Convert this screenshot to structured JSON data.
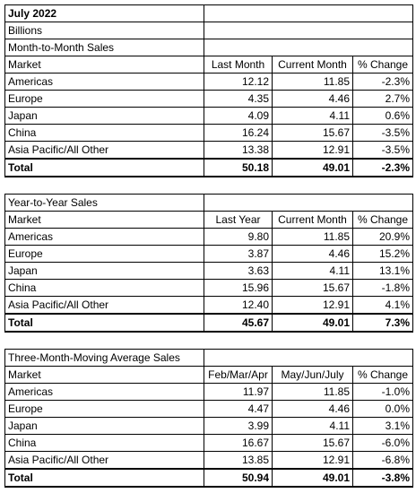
{
  "header": {
    "title": "July 2022",
    "unit": "Billions"
  },
  "sections": [
    {
      "title": "Month-to-Month Sales",
      "columns": [
        "Market",
        "Last Month",
        "Current Month",
        "% Change"
      ],
      "rows": [
        [
          "Americas",
          "12.12",
          "11.85",
          "-2.3%"
        ],
        [
          "Europe",
          "4.35",
          "4.46",
          "2.7%"
        ],
        [
          "Japan",
          "4.09",
          "4.11",
          "0.6%"
        ],
        [
          "China",
          "16.24",
          "15.67",
          "-3.5%"
        ],
        [
          "Asia Pacific/All Other",
          "13.38",
          "12.91",
          "-3.5%"
        ]
      ],
      "total": [
        "Total",
        "50.18",
        "49.01",
        "-2.3%"
      ]
    },
    {
      "title": "Year-to-Year Sales",
      "columns": [
        "Market",
        "Last Year",
        "Current Month",
        "% Change"
      ],
      "rows": [
        [
          "Americas",
          "9.80",
          "11.85",
          "20.9%"
        ],
        [
          "Europe",
          "3.87",
          "4.46",
          "15.2%"
        ],
        [
          "Japan",
          "3.63",
          "4.11",
          "13.1%"
        ],
        [
          "China",
          "15.96",
          "15.67",
          "-1.8%"
        ],
        [
          "Asia Pacific/All Other",
          "12.40",
          "12.91",
          "4.1%"
        ]
      ],
      "total": [
        "Total",
        "45.67",
        "49.01",
        "7.3%"
      ]
    },
    {
      "title": "Three-Month-Moving Average Sales",
      "columns": [
        "Market",
        "Feb/Mar/Apr",
        "May/Jun/July",
        "% Change"
      ],
      "rows": [
        [
          "Americas",
          "11.97",
          "11.85",
          "-1.0%"
        ],
        [
          "Europe",
          "4.47",
          "4.46",
          "0.0%"
        ],
        [
          "Japan",
          "3.99",
          "4.11",
          "3.1%"
        ],
        [
          "China",
          "16.67",
          "15.67",
          "-6.0%"
        ],
        [
          "Asia Pacific/All Other",
          "13.85",
          "12.91",
          "-6.8%"
        ]
      ],
      "total": [
        "Total",
        "50.94",
        "49.01",
        "-3.8%"
      ]
    }
  ]
}
